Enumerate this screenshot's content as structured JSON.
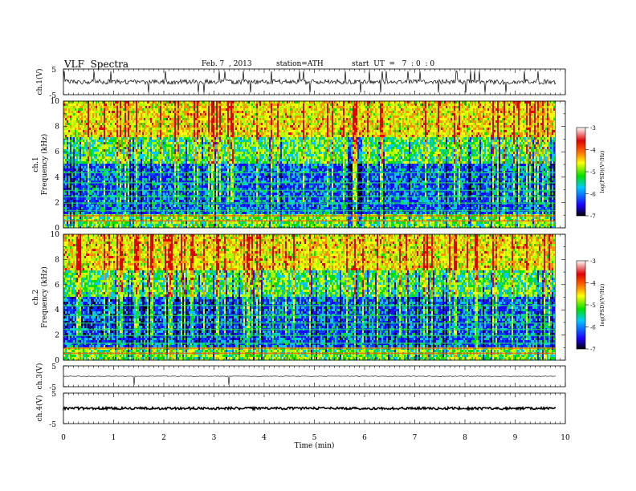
{
  "header": {
    "title": "VLF  Spectra",
    "date": "Feb. 7  , 2013",
    "station": "station=ATH",
    "start": "start  UT  =   7  : 0  : 0"
  },
  "chart_data": [
    {
      "type": "line",
      "panel": "ch1-waveform",
      "ylabel": "ch.1(V)",
      "yticks": [
        "5",
        "-5"
      ],
      "ylim": [
        -5,
        5
      ],
      "xlim": [
        0,
        10
      ],
      "baseline": 0.0,
      "description_level": "dense noisy waveform around 0 V with spikes"
    },
    {
      "type": "heatmap",
      "panel": "ch1-spectrogram",
      "ylabel_channel": "ch.1",
      "ylabel": "Frequency  (kHz)",
      "yticks": [
        "0",
        "2",
        "4",
        "6",
        "8",
        "10"
      ],
      "ylim": [
        0,
        10
      ],
      "xlim": [
        0,
        9.8
      ],
      "colorbar": {
        "label": "log(PSD)(V²/Hz)",
        "ticks": [
          "-3",
          "-4",
          "-5",
          "-6",
          "-7"
        ],
        "range": [
          -7,
          -3
        ]
      },
      "colormap": [
        "#000000",
        "#1a00ff",
        "#00c8ff",
        "#00e000",
        "#ffff00",
        "#ff7000",
        "#e00000",
        "#ffffff"
      ]
    },
    {
      "type": "heatmap",
      "panel": "ch2-spectrogram",
      "ylabel_channel": "ch.2",
      "ylabel": "Frequency  (kHz)",
      "yticks": [
        "0",
        "2",
        "4",
        "6",
        "8",
        "10"
      ],
      "ylim": [
        0,
        10
      ],
      "xlim": [
        0,
        9.8
      ],
      "colorbar": {
        "label": "log(PSD)(V²/Hz)",
        "ticks": [
          "-3",
          "-4",
          "-5",
          "-6",
          "-7"
        ],
        "range": [
          -7,
          -3
        ]
      }
    },
    {
      "type": "line",
      "panel": "ch3-waveform",
      "ylabel": "ch.3(V)",
      "yticks": [
        "5",
        "-5"
      ],
      "ylim": [
        -5,
        5
      ],
      "baseline": 0.0
    },
    {
      "type": "line",
      "panel": "ch4-waveform",
      "ylabel": "ch.4(V)",
      "yticks": [
        "5",
        "-5"
      ],
      "ylim": [
        -5,
        5
      ],
      "baseline": 0.0
    }
  ],
  "xaxis": {
    "label": "Time  (min)",
    "ticks": [
      "0",
      "1",
      "2",
      "3",
      "4",
      "5",
      "6",
      "7",
      "8",
      "9",
      "10"
    ],
    "xlim": [
      0,
      10
    ]
  }
}
